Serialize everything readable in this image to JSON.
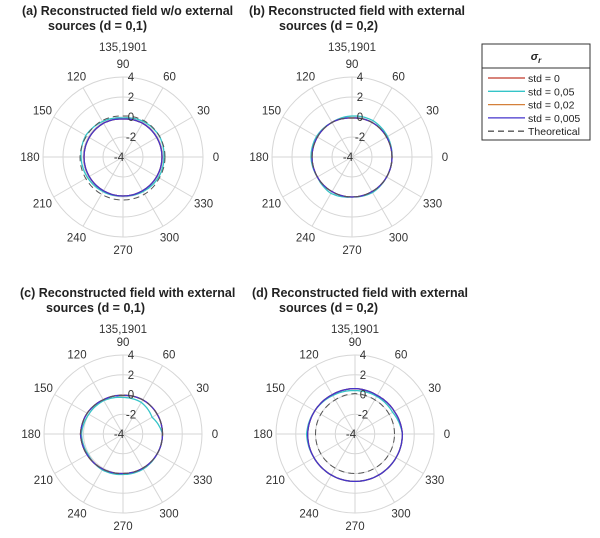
{
  "chart_data": [
    {
      "type": "polar-line",
      "title_line1": "(a) Reconstructed field w/o external",
      "title_line2": "sources (d = 0,1)",
      "subtitle": "135,1901",
      "theta_ticks": [
        "0",
        "30",
        "60",
        "90",
        "120",
        "150",
        "180",
        "210",
        "240",
        "270",
        "300",
        "330"
      ],
      "r_ticks": [
        "-4",
        "-2",
        "0",
        "2",
        "4"
      ],
      "rlim": [
        -4,
        4
      ],
      "grid": true,
      "theta_deg": [
        0,
        30,
        60,
        90,
        120,
        150,
        180,
        210,
        240,
        270,
        300,
        330
      ],
      "series": [
        {
          "name": "std = 0",
          "r": [
            -0.1,
            -0.1,
            -0.1,
            -0.2,
            -0.1,
            -0.1,
            -0.1,
            -0.1,
            -0.1,
            -0.1,
            -0.1,
            -0.1
          ]
        },
        {
          "name": "std = 0,05",
          "r": [
            0.1,
            0.2,
            0.1,
            -0.1,
            0.1,
            0.3,
            0.2,
            0.1,
            0.0,
            -0.1,
            0.0,
            0.1
          ]
        },
        {
          "name": "std = 0,02",
          "r": [
            -0.1,
            -0.1,
            -0.1,
            -0.2,
            -0.1,
            -0.1,
            -0.1,
            -0.1,
            -0.1,
            -0.1,
            -0.1,
            -0.1
          ]
        },
        {
          "name": "std = 0,005",
          "r": [
            -0.1,
            -0.1,
            -0.1,
            -0.2,
            -0.1,
            -0.1,
            -0.1,
            -0.1,
            -0.1,
            -0.1,
            -0.1,
            -0.1
          ]
        },
        {
          "name": "Theoretical",
          "r": [
            0.2,
            0.2,
            0.2,
            0.1,
            0.2,
            0.2,
            0.3,
            0.3,
            0.3,
            0.3,
            0.3,
            0.2
          ]
        }
      ]
    },
    {
      "type": "polar-line",
      "title_line1": "(b) Reconstructed field with external",
      "title_line2": "sources (d = 0,2)",
      "subtitle": "135,1901",
      "theta_ticks": [
        "0",
        "30",
        "60",
        "90",
        "120",
        "150",
        "180",
        "210",
        "240",
        "270",
        "300",
        "330"
      ],
      "r_ticks": [
        "-4",
        "-2",
        "0",
        "2",
        "4"
      ],
      "rlim": [
        -4,
        4
      ],
      "grid": true,
      "theta_deg": [
        0,
        30,
        60,
        90,
        120,
        150,
        180,
        210,
        240,
        270,
        300,
        330
      ],
      "series": [
        {
          "name": "std = 0",
          "r": [
            0.0,
            0.0,
            0.0,
            -0.1,
            0.0,
            0.0,
            0.0,
            0.0,
            0.0,
            0.0,
            0.0,
            0.0
          ]
        },
        {
          "name": "std = 0,05",
          "r": [
            0.0,
            0.1,
            0.2,
            0.1,
            0.0,
            0.1,
            0.1,
            0.0,
            0.2,
            0.0,
            0.1,
            0.0
          ]
        },
        {
          "name": "std = 0,02",
          "r": [
            0.0,
            0.0,
            0.0,
            -0.1,
            0.0,
            0.0,
            0.0,
            0.0,
            0.0,
            0.0,
            0.0,
            0.0
          ]
        },
        {
          "name": "std = 0,005",
          "r": [
            0.0,
            0.0,
            0.0,
            -0.1,
            0.0,
            0.0,
            0.0,
            0.0,
            0.0,
            0.0,
            0.0,
            0.0
          ]
        },
        {
          "name": "Theoretical",
          "r": [
            0.0,
            0.0,
            0.0,
            -0.1,
            0.0,
            0.0,
            0.0,
            0.0,
            0.0,
            0.0,
            0.0,
            0.0
          ]
        }
      ]
    },
    {
      "type": "polar-line",
      "title_line1": "(c) Reconstructed field with external",
      "title_line2": "sources (d = 0,1)",
      "subtitle": "135,1901",
      "theta_ticks": [
        "0",
        "30",
        "60",
        "90",
        "120",
        "150",
        "180",
        "210",
        "240",
        "270",
        "300",
        "330"
      ],
      "r_ticks": [
        "-4",
        "-2",
        "0",
        "2",
        "4"
      ],
      "rlim": [
        -4,
        4
      ],
      "grid": true,
      "theta_deg": [
        0,
        30,
        60,
        90,
        120,
        150,
        180,
        210,
        240,
        270,
        300,
        330
      ],
      "series": [
        {
          "name": "std = 0",
          "r": [
            0.0,
            0.0,
            0.0,
            -0.1,
            0.0,
            0.2,
            0.3,
            0.2,
            0.1,
            0.0,
            0.0,
            0.0
          ]
        },
        {
          "name": "std = 0,05",
          "r": [
            0.0,
            -0.6,
            -0.3,
            -0.3,
            -0.1,
            0.0,
            0.2,
            0.1,
            0.2,
            0.1,
            0.1,
            0.0
          ]
        },
        {
          "name": "std = 0,02",
          "r": [
            0.0,
            0.0,
            0.0,
            -0.1,
            0.0,
            0.2,
            0.3,
            0.2,
            0.1,
            0.0,
            0.0,
            0.0
          ]
        },
        {
          "name": "std = 0,005",
          "r": [
            0.0,
            0.0,
            0.0,
            -0.1,
            0.0,
            0.2,
            0.3,
            0.2,
            0.1,
            0.0,
            0.0,
            0.0
          ]
        },
        {
          "name": "Theoretical",
          "r": [
            0.0,
            0.0,
            0.0,
            -0.1,
            0.0,
            0.2,
            0.3,
            0.2,
            0.1,
            0.0,
            0.0,
            0.0
          ]
        }
      ]
    },
    {
      "type": "polar-line",
      "title_line1": "(d) Reconstructed field with external",
      "title_line2": "sources (d = 0,2)",
      "subtitle": "135,1901",
      "theta_ticks": [
        "0",
        "30",
        "60",
        "90",
        "120",
        "150",
        "180",
        "210",
        "240",
        "270",
        "300",
        "330"
      ],
      "r_ticks": [
        "-4",
        "-2",
        "0",
        "2",
        "4"
      ],
      "rlim": [
        -4,
        4
      ],
      "grid": true,
      "theta_deg": [
        0,
        30,
        60,
        90,
        120,
        150,
        180,
        210,
        240,
        270,
        300,
        330
      ],
      "series": [
        {
          "name": "std = 0",
          "r": [
            0.8,
            0.6,
            0.5,
            0.6,
            0.6,
            0.7,
            0.8,
            0.8,
            0.8,
            0.8,
            0.8,
            0.8
          ]
        },
        {
          "name": "std = 0,05",
          "r": [
            0.8,
            0.4,
            0.4,
            0.4,
            0.5,
            0.7,
            0.9,
            0.8,
            0.8,
            0.8,
            0.8,
            0.8
          ]
        },
        {
          "name": "std = 0,02",
          "r": [
            0.8,
            0.6,
            0.5,
            0.6,
            0.6,
            0.7,
            0.8,
            0.8,
            0.8,
            0.8,
            0.8,
            0.8
          ]
        },
        {
          "name": "std = 0,005",
          "r": [
            0.8,
            0.6,
            0.5,
            0.6,
            0.6,
            0.7,
            0.8,
            0.8,
            0.8,
            0.8,
            0.8,
            0.8
          ]
        },
        {
          "name": "Theoretical",
          "r": [
            0.0,
            0.0,
            0.0,
            0.1,
            0.0,
            0.0,
            0.0,
            0.0,
            0.0,
            0.0,
            0.0,
            0.0
          ]
        }
      ]
    }
  ],
  "legend": {
    "title": "σ",
    "title_subscript": "r",
    "placement": "top-right",
    "entries": [
      {
        "label": "std = 0",
        "color": "#c0392b",
        "dashed": false
      },
      {
        "label": "std = 0,05",
        "color": "#35c4c8",
        "dashed": false
      },
      {
        "label": "std = 0,02",
        "color": "#d4803a",
        "dashed": false
      },
      {
        "label": "std = 0,005",
        "color": "#4433cc",
        "dashed": false
      },
      {
        "label": "Theoretical",
        "color": "#555555",
        "dashed": true
      }
    ]
  },
  "colors": {
    "grid": "#d6d6d6",
    "text": "#333333"
  }
}
